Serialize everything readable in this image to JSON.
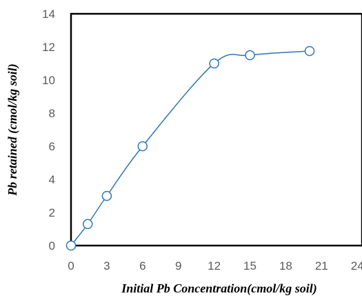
{
  "chart_data": {
    "type": "scatter",
    "title": "",
    "xlabel": "Initial Pb Concentration(cmol/kg soil)",
    "ylabel": "Pb retained (cmol/kg soil)",
    "xlim": [
      0,
      24
    ],
    "ylim": [
      0,
      14
    ],
    "xticks": [
      "0",
      "3",
      "6",
      "9",
      "12",
      "15",
      "18",
      "21",
      "24"
    ],
    "yticks": [
      "0",
      "2",
      "4",
      "6",
      "8",
      "10",
      "12",
      "14"
    ],
    "grid": false,
    "legend": "none",
    "line_style": "smoothed",
    "marker": "open-circle",
    "series": [
      {
        "x": [
          0,
          1.4,
          3,
          6,
          12,
          15,
          20
        ],
        "y": [
          0,
          1.3,
          3.0,
          6.0,
          11.0,
          11.5,
          11.75
        ]
      }
    ],
    "colors": {
      "series": "#2e75b6",
      "axes": "#000000",
      "ticks": "#595959"
    }
  }
}
